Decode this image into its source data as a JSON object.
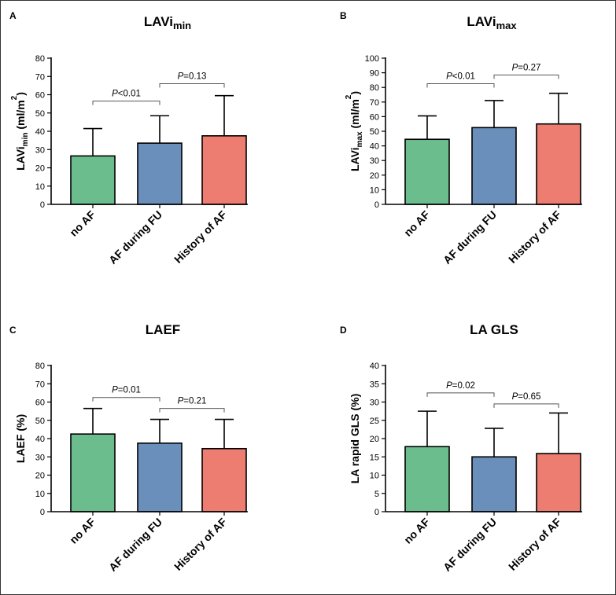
{
  "colors": {
    "no_af": "#6cbd8e",
    "af_during_fu": "#6a8fbb",
    "history_of_af": "#ec7d70"
  },
  "chart_data": [
    {
      "panel": "A",
      "type": "bar",
      "title_main": "LAVi",
      "title_sub": "min",
      "ylabel_parts": [
        {
          "t": "LAVi",
          "s": "n"
        },
        {
          "t": "min",
          "s": "sub"
        },
        {
          "t": " (ml/m",
          "s": "n"
        },
        {
          "t": "2",
          "s": "sup"
        },
        {
          "t": ")",
          "s": "n"
        }
      ],
      "categories": [
        "no AF",
        "AF during FU",
        "History of AF"
      ],
      "values": [
        26.5,
        33.5,
        37.5
      ],
      "errors": [
        15.0,
        15.0,
        22.0
      ],
      "ylim": [
        0,
        80
      ],
      "yticks": [
        0,
        10,
        20,
        30,
        40,
        50,
        60,
        70,
        80
      ],
      "comparisons": [
        {
          "from": 0,
          "to": 1,
          "y": 56.5,
          "p_letter": "P",
          "p_value": "<0.01"
        },
        {
          "from": 1,
          "to": 2,
          "y": 66,
          "p_letter": "P",
          "p_value": "=0.13"
        }
      ]
    },
    {
      "panel": "B",
      "type": "bar",
      "title_main": "LAVi",
      "title_sub": "max",
      "ylabel_parts": [
        {
          "t": "LAVi",
          "s": "n"
        },
        {
          "t": "max",
          "s": "sub"
        },
        {
          "t": " (ml/m",
          "s": "n"
        },
        {
          "t": "2",
          "s": "sup"
        },
        {
          "t": ")",
          "s": "n"
        }
      ],
      "categories": [
        "no AF",
        "AF during FU",
        "History of AF"
      ],
      "values": [
        44.5,
        52.5,
        55
      ],
      "errors": [
        16.0,
        18.5,
        21.0
      ],
      "ylim": [
        0,
        100
      ],
      "yticks": [
        0,
        10,
        20,
        30,
        40,
        50,
        60,
        70,
        80,
        90,
        100
      ],
      "comparisons": [
        {
          "from": 0,
          "to": 1,
          "y": 82.5,
          "p_letter": "P",
          "p_value": "<0.01"
        },
        {
          "from": 1,
          "to": 2,
          "y": 88.5,
          "p_letter": "P",
          "p_value": "=0.27"
        }
      ]
    },
    {
      "panel": "C",
      "type": "bar",
      "title_main": "LAEF",
      "title_sub": "",
      "ylabel_parts": [
        {
          "t": "LAEF (%)",
          "s": "n"
        }
      ],
      "categories": [
        "no AF",
        "AF during FU",
        "History of AF"
      ],
      "values": [
        42.5,
        37.5,
        34.5
      ],
      "errors": [
        14.0,
        13.0,
        16.0
      ],
      "ylim": [
        0,
        80
      ],
      "yticks": [
        0,
        10,
        20,
        30,
        40,
        50,
        60,
        70,
        80
      ],
      "comparisons": [
        {
          "from": 0,
          "to": 1,
          "y": 62.5,
          "p_letter": "P",
          "p_value": "=0.01"
        },
        {
          "from": 1,
          "to": 2,
          "y": 56.5,
          "p_letter": "P",
          "p_value": "=0.21"
        }
      ]
    },
    {
      "panel": "D",
      "type": "bar",
      "title_main": "LA GLS",
      "title_sub": "",
      "ylabel_parts": [
        {
          "t": "LA rapid GLS (%)",
          "s": "n"
        }
      ],
      "categories": [
        "no AF",
        "AF during FU",
        "History of AF"
      ],
      "values": [
        17.8,
        15,
        15.9
      ],
      "errors": [
        9.7,
        7.8,
        11.1
      ],
      "ylim": [
        0,
        40
      ],
      "yticks": [
        0,
        5,
        10,
        15,
        20,
        25,
        30,
        35,
        40
      ],
      "comparisons": [
        {
          "from": 0,
          "to": 1,
          "y": 32.5,
          "p_letter": "P",
          "p_value": "=0.02"
        },
        {
          "from": 1,
          "to": 2,
          "y": 29.5,
          "p_letter": "P",
          "p_value": "=0.65"
        }
      ]
    }
  ]
}
